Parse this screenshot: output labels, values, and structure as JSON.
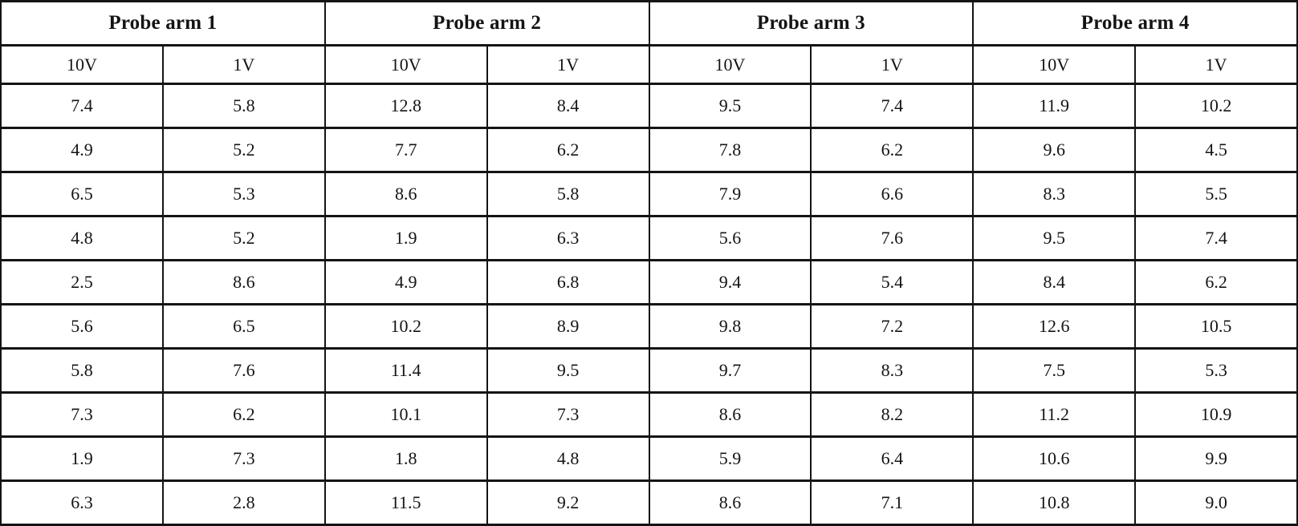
{
  "table": {
    "groups": [
      {
        "label": "Probe arm 1"
      },
      {
        "label": "Probe arm 2"
      },
      {
        "label": "Probe arm 3"
      },
      {
        "label": "Probe arm 4"
      }
    ],
    "subheaders": [
      "10V",
      "1V",
      "10V",
      "1V",
      "10V",
      "1V",
      "10V",
      "1V"
    ],
    "rows": [
      [
        "7.4",
        "5.8",
        "12.8",
        "8.4",
        "9.5",
        "7.4",
        "11.9",
        "10.2"
      ],
      [
        "4.9",
        "5.2",
        "7.7",
        "6.2",
        "7.8",
        "6.2",
        "9.6",
        "4.5"
      ],
      [
        "6.5",
        "5.3",
        "8.6",
        "5.8",
        "7.9",
        "6.6",
        "8.3",
        "5.5"
      ],
      [
        "4.8",
        "5.2",
        "1.9",
        "6.3",
        "5.6",
        "7.6",
        "9.5",
        "7.4"
      ],
      [
        "2.5",
        "8.6",
        "4.9",
        "6.8",
        "9.4",
        "5.4",
        "8.4",
        "6.2"
      ],
      [
        "5.6",
        "6.5",
        "10.2",
        "8.9",
        "9.8",
        "7.2",
        "12.6",
        "10.5"
      ],
      [
        "5.8",
        "7.6",
        "11.4",
        "9.5",
        "9.7",
        "8.3",
        "7.5",
        "5.3"
      ],
      [
        "7.3",
        "6.2",
        "10.1",
        "7.3",
        "8.6",
        "8.2",
        "11.2",
        "10.9"
      ],
      [
        "1.9",
        "7.3",
        "1.8",
        "4.8",
        "5.9",
        "6.4",
        "10.6",
        "9.9"
      ],
      [
        "6.3",
        "2.8",
        "11.5",
        "9.2",
        "8.6",
        "7.1",
        "10.8",
        "9.0"
      ]
    ]
  },
  "chart_data": {
    "type": "table",
    "column_groups": [
      "Probe arm 1",
      "Probe arm 2",
      "Probe arm 3",
      "Probe arm 4"
    ],
    "columns": [
      "10V",
      "1V",
      "10V",
      "1V",
      "10V",
      "1V",
      "10V",
      "1V"
    ],
    "rows": [
      [
        7.4,
        5.8,
        12.8,
        8.4,
        9.5,
        7.4,
        11.9,
        10.2
      ],
      [
        4.9,
        5.2,
        7.7,
        6.2,
        7.8,
        6.2,
        9.6,
        4.5
      ],
      [
        6.5,
        5.3,
        8.6,
        5.8,
        7.9,
        6.6,
        8.3,
        5.5
      ],
      [
        4.8,
        5.2,
        1.9,
        6.3,
        5.6,
        7.6,
        9.5,
        7.4
      ],
      [
        2.5,
        8.6,
        4.9,
        6.8,
        9.4,
        5.4,
        8.4,
        6.2
      ],
      [
        5.6,
        6.5,
        10.2,
        8.9,
        9.8,
        7.2,
        12.6,
        10.5
      ],
      [
        5.8,
        7.6,
        11.4,
        9.5,
        9.7,
        8.3,
        7.5,
        5.3
      ],
      [
        7.3,
        6.2,
        10.1,
        7.3,
        8.6,
        8.2,
        11.2,
        10.9
      ],
      [
        1.9,
        7.3,
        1.8,
        4.8,
        5.9,
        6.4,
        10.6,
        9.9
      ],
      [
        6.3,
        2.8,
        11.5,
        9.2,
        8.6,
        7.1,
        10.8,
        9.0
      ]
    ],
    "series": [
      {
        "name": "Probe arm 1 - 10V",
        "values": [
          7.4,
          4.9,
          6.5,
          4.8,
          2.5,
          5.6,
          5.8,
          7.3,
          1.9,
          6.3
        ]
      },
      {
        "name": "Probe arm 1 - 1V",
        "values": [
          5.8,
          5.2,
          5.3,
          5.2,
          8.6,
          6.5,
          7.6,
          6.2,
          7.3,
          2.8
        ]
      },
      {
        "name": "Probe arm 2 - 10V",
        "values": [
          12.8,
          7.7,
          8.6,
          1.9,
          4.9,
          10.2,
          11.4,
          10.1,
          1.8,
          11.5
        ]
      },
      {
        "name": "Probe arm 2 - 1V",
        "values": [
          8.4,
          6.2,
          5.8,
          6.3,
          6.8,
          8.9,
          9.5,
          7.3,
          4.8,
          9.2
        ]
      },
      {
        "name": "Probe arm 3 - 10V",
        "values": [
          9.5,
          7.8,
          7.9,
          5.6,
          9.4,
          9.8,
          9.7,
          8.6,
          5.9,
          8.6
        ]
      },
      {
        "name": "Probe arm 3 - 1V",
        "values": [
          7.4,
          6.2,
          6.6,
          7.6,
          5.4,
          7.2,
          8.3,
          8.2,
          6.4,
          7.1
        ]
      },
      {
        "name": "Probe arm 4 - 10V",
        "values": [
          11.9,
          9.6,
          8.3,
          9.5,
          8.4,
          12.6,
          7.5,
          11.2,
          10.6,
          10.8
        ]
      },
      {
        "name": "Probe arm 4 - 1V",
        "values": [
          10.2,
          4.5,
          5.5,
          7.4,
          6.2,
          10.5,
          5.3,
          10.9,
          9.9,
          9.0
        ]
      }
    ],
    "grid": true,
    "legend_position": "none"
  },
  "colors": {
    "border": "#141414",
    "text": "#141414",
    "background": "#ffffff"
  }
}
